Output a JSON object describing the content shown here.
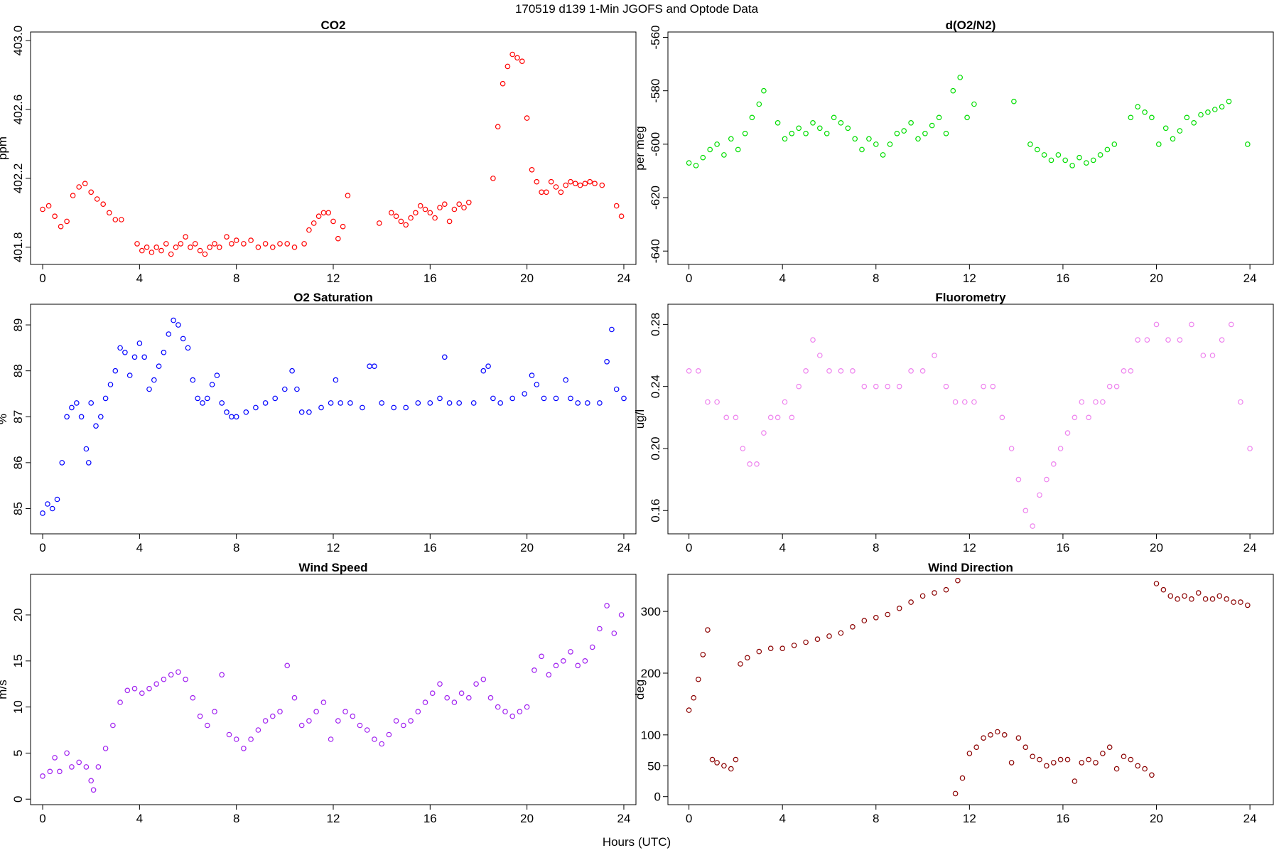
{
  "figure": {
    "title": "170519   d139   1-Min  JGOFS and Optode Data",
    "xlabel": "Hours (UTC)"
  },
  "chart_data": [
    {
      "type": "scatter",
      "title": "CO2",
      "ylabel": "ppm",
      "color": "#ff0000",
      "xlim": [
        -0.5,
        24.5
      ],
      "ylim": [
        401.7,
        403.05
      ],
      "xticks": [
        0,
        4,
        8,
        12,
        16,
        20,
        24
      ],
      "yticks": [
        401.8,
        402.2,
        402.6,
        403.0
      ],
      "ytick_labels": [
        "401.8",
        "402.2",
        "402.6",
        "403.0"
      ],
      "rotate_y_ticks": true,
      "x": [
        0.0,
        0.25,
        0.5,
        0.75,
        1.0,
        1.25,
        1.5,
        1.75,
        2.0,
        2.25,
        2.5,
        2.75,
        3.0,
        3.25,
        3.9,
        4.1,
        4.3,
        4.5,
        4.7,
        4.9,
        5.1,
        5.3,
        5.5,
        5.7,
        5.9,
        6.1,
        6.3,
        6.5,
        6.7,
        6.9,
        7.1,
        7.3,
        7.6,
        7.8,
        8.0,
        8.3,
        8.6,
        8.9,
        9.2,
        9.5,
        9.8,
        10.1,
        10.4,
        10.8,
        11.0,
        11.2,
        11.4,
        11.6,
        11.8,
        12.0,
        12.2,
        12.4,
        12.6,
        13.9,
        14.4,
        14.6,
        14.8,
        15.0,
        15.2,
        15.4,
        15.6,
        15.8,
        16.0,
        16.2,
        16.4,
        16.6,
        16.8,
        17.0,
        17.2,
        17.4,
        17.6,
        18.6,
        18.8,
        19.0,
        19.2,
        19.4,
        19.6,
        19.8,
        20.0,
        20.2,
        20.4,
        20.6,
        20.8,
        21.0,
        21.2,
        21.4,
        21.6,
        21.8,
        22.0,
        22.2,
        22.4,
        22.6,
        22.8,
        23.1,
        23.7,
        23.9
      ],
      "y": [
        402.02,
        402.04,
        401.98,
        401.92,
        401.95,
        402.1,
        402.15,
        402.17,
        402.12,
        402.08,
        402.05,
        402.0,
        401.96,
        401.96,
        401.82,
        401.78,
        401.8,
        401.77,
        401.8,
        401.78,
        401.82,
        401.76,
        401.8,
        401.82,
        401.86,
        401.8,
        401.82,
        401.78,
        401.76,
        401.8,
        401.82,
        401.8,
        401.86,
        401.82,
        401.84,
        401.82,
        401.84,
        401.8,
        401.82,
        401.8,
        401.82,
        401.82,
        401.8,
        401.82,
        401.9,
        401.94,
        401.98,
        402.0,
        402.0,
        401.95,
        401.85,
        401.92,
        402.1,
        401.94,
        402.0,
        401.98,
        401.95,
        401.93,
        401.97,
        402.0,
        402.04,
        402.02,
        402.0,
        401.97,
        402.03,
        402.05,
        401.95,
        402.02,
        402.05,
        402.03,
        402.06,
        402.2,
        402.5,
        402.75,
        402.85,
        402.92,
        402.9,
        402.88,
        402.55,
        402.25,
        402.18,
        402.12,
        402.12,
        402.18,
        402.15,
        402.12,
        402.16,
        402.18,
        402.17,
        402.16,
        402.17,
        402.18,
        402.17,
        402.16,
        402.04,
        401.98
      ]
    },
    {
      "type": "scatter",
      "title": "d(O2/N2)",
      "ylabel": "per meg",
      "color": "#00dd00",
      "xlim": [
        -0.9,
        25.0
      ],
      "ylim": [
        -645,
        -558
      ],
      "xticks": [
        0,
        4,
        8,
        12,
        16,
        20,
        24
      ],
      "yticks": [
        -640,
        -620,
        -600,
        -580,
        -560
      ],
      "ytick_labels": [
        "-640",
        "-620",
        "-600",
        "-580",
        "-560"
      ],
      "rotate_y_ticks": true,
      "x": [
        0.0,
        0.3,
        0.6,
        0.9,
        1.2,
        1.5,
        1.8,
        2.1,
        2.4,
        2.7,
        3.0,
        3.2,
        3.8,
        4.1,
        4.4,
        4.7,
        5.0,
        5.3,
        5.6,
        5.9,
        6.2,
        6.5,
        6.8,
        7.1,
        7.4,
        7.7,
        8.0,
        8.3,
        8.6,
        8.9,
        9.2,
        9.5,
        9.8,
        10.1,
        10.4,
        10.7,
        11.0,
        11.3,
        11.6,
        11.9,
        12.2,
        13.9,
        14.6,
        14.9,
        15.2,
        15.5,
        15.8,
        16.1,
        16.4,
        16.7,
        17.0,
        17.3,
        17.6,
        17.9,
        18.2,
        18.9,
        19.2,
        19.5,
        19.8,
        20.1,
        20.4,
        20.7,
        21.0,
        21.3,
        21.6,
        21.9,
        22.2,
        22.5,
        22.8,
        23.1,
        23.9
      ],
      "y": [
        -607,
        -608,
        -605,
        -602,
        -600,
        -604,
        -598,
        -602,
        -596,
        -590,
        -585,
        -580,
        -592,
        -598,
        -596,
        -594,
        -596,
        -592,
        -594,
        -596,
        -590,
        -592,
        -594,
        -598,
        -602,
        -598,
        -600,
        -604,
        -600,
        -596,
        -595,
        -592,
        -598,
        -596,
        -593,
        -590,
        -596,
        -580,
        -575,
        -590,
        -585,
        -584,
        -600,
        -602,
        -604,
        -606,
        -604,
        -606,
        -608,
        -605,
        -607,
        -606,
        -604,
        -602,
        -600,
        -590,
        -586,
        -588,
        -590,
        -600,
        -594,
        -598,
        -595,
        -590,
        -592,
        -589,
        -588,
        -587,
        -586,
        -584,
        -600
      ]
    },
    {
      "type": "scatter",
      "title": "O2 Saturation",
      "ylabel": "%",
      "color": "#0000ff",
      "xlim": [
        -0.5,
        24.5
      ],
      "ylim": [
        84.45,
        89.45
      ],
      "xticks": [
        0,
        4,
        8,
        12,
        16,
        20,
        24
      ],
      "yticks": [
        85,
        86,
        87,
        88,
        89
      ],
      "ytick_labels": [
        "85",
        "86",
        "87",
        "88",
        "89"
      ],
      "rotate_y_ticks": true,
      "x": [
        0.0,
        0.2,
        0.4,
        0.6,
        0.8,
        1.0,
        1.2,
        1.4,
        1.6,
        1.8,
        1.9,
        2.0,
        2.2,
        2.4,
        2.6,
        2.8,
        3.0,
        3.2,
        3.4,
        3.6,
        3.8,
        4.0,
        4.2,
        4.4,
        4.6,
        4.8,
        5.0,
        5.2,
        5.4,
        5.6,
        5.8,
        6.0,
        6.2,
        6.4,
        6.6,
        6.8,
        7.0,
        7.2,
        7.4,
        7.6,
        7.8,
        8.0,
        8.4,
        8.8,
        9.2,
        9.6,
        10.0,
        10.3,
        10.5,
        10.7,
        11.0,
        11.5,
        11.9,
        12.1,
        12.3,
        12.7,
        13.2,
        13.5,
        13.7,
        14.0,
        14.5,
        15.0,
        15.5,
        16.0,
        16.4,
        16.6,
        16.8,
        17.2,
        17.8,
        18.2,
        18.4,
        18.6,
        18.9,
        19.4,
        19.9,
        20.2,
        20.4,
        20.7,
        21.2,
        21.6,
        21.8,
        22.1,
        22.5,
        23.0,
        23.3,
        23.5,
        23.7,
        24.0
      ],
      "y": [
        84.9,
        85.1,
        85.0,
        85.2,
        86.0,
        87.0,
        87.2,
        87.3,
        87.0,
        86.3,
        86.0,
        87.3,
        86.8,
        87.0,
        87.4,
        87.7,
        88.0,
        88.5,
        88.4,
        87.9,
        88.3,
        88.6,
        88.3,
        87.6,
        87.8,
        88.1,
        88.4,
        88.8,
        89.1,
        89.0,
        88.7,
        88.5,
        87.8,
        87.4,
        87.3,
        87.4,
        87.7,
        87.9,
        87.3,
        87.1,
        87.0,
        87.0,
        87.1,
        87.2,
        87.3,
        87.4,
        87.6,
        88.0,
        87.6,
        87.1,
        87.1,
        87.2,
        87.3,
        87.8,
        87.3,
        87.3,
        87.2,
        88.1,
        88.1,
        87.3,
        87.2,
        87.2,
        87.3,
        87.3,
        87.4,
        88.3,
        87.3,
        87.3,
        87.3,
        88.0,
        88.1,
        87.4,
        87.3,
        87.4,
        87.5,
        87.9,
        87.7,
        87.4,
        87.4,
        87.8,
        87.4,
        87.3,
        87.3,
        87.3,
        88.2,
        88.9,
        87.6,
        87.4
      ]
    },
    {
      "type": "scatter",
      "title": "Fluorometry",
      "ylabel": "ug/l",
      "color": "#ee82ee",
      "xlim": [
        -0.9,
        25.0
      ],
      "ylim": [
        0.145,
        0.293
      ],
      "xticks": [
        0,
        4,
        8,
        12,
        16,
        20,
        24
      ],
      "yticks": [
        0.16,
        0.2,
        0.24,
        0.28
      ],
      "ytick_labels": [
        "0.16",
        "0.20",
        "0.24",
        "0.28"
      ],
      "rotate_y_ticks": true,
      "x": [
        0.0,
        0.4,
        0.8,
        1.2,
        1.6,
        2.0,
        2.3,
        2.6,
        2.9,
        3.2,
        3.5,
        3.8,
        4.1,
        4.4,
        4.7,
        5.0,
        5.3,
        5.6,
        6.0,
        6.5,
        7.0,
        7.5,
        8.0,
        8.5,
        9.0,
        9.5,
        10.0,
        10.5,
        11.0,
        11.4,
        11.8,
        12.2,
        12.6,
        13.0,
        13.4,
        13.8,
        14.1,
        14.4,
        14.7,
        15.0,
        15.3,
        15.6,
        15.9,
        16.2,
        16.5,
        16.8,
        17.1,
        17.4,
        17.7,
        18.0,
        18.3,
        18.6,
        18.9,
        19.2,
        19.6,
        20.0,
        20.5,
        21.0,
        21.5,
        22.0,
        22.4,
        22.8,
        23.2,
        23.6,
        24.0
      ],
      "y": [
        0.25,
        0.25,
        0.23,
        0.23,
        0.22,
        0.22,
        0.2,
        0.19,
        0.19,
        0.21,
        0.22,
        0.22,
        0.23,
        0.22,
        0.24,
        0.25,
        0.27,
        0.26,
        0.25,
        0.25,
        0.25,
        0.24,
        0.24,
        0.24,
        0.24,
        0.25,
        0.25,
        0.26,
        0.24,
        0.23,
        0.23,
        0.23,
        0.24,
        0.24,
        0.22,
        0.2,
        0.18,
        0.16,
        0.15,
        0.17,
        0.18,
        0.19,
        0.2,
        0.21,
        0.22,
        0.23,
        0.22,
        0.23,
        0.23,
        0.24,
        0.24,
        0.25,
        0.25,
        0.27,
        0.27,
        0.28,
        0.27,
        0.27,
        0.28,
        0.26,
        0.26,
        0.27,
        0.28,
        0.23,
        0.2
      ]
    },
    {
      "type": "scatter",
      "title": "Wind Speed",
      "ylabel": "m/s",
      "color": "#a020f0",
      "xlim": [
        -0.5,
        24.5
      ],
      "ylim": [
        -0.6,
        24.4
      ],
      "xticks": [
        0,
        4,
        8,
        12,
        16,
        20,
        24
      ],
      "yticks": [
        0,
        5,
        10,
        15,
        20
      ],
      "ytick_labels": [
        "0",
        "5",
        "10",
        "15",
        "20"
      ],
      "rotate_y_ticks": true,
      "x": [
        0.0,
        0.3,
        0.5,
        0.7,
        1.0,
        1.2,
        1.5,
        1.8,
        2.0,
        2.1,
        2.3,
        2.6,
        2.9,
        3.2,
        3.5,
        3.8,
        4.1,
        4.4,
        4.7,
        5.0,
        5.3,
        5.6,
        5.9,
        6.2,
        6.5,
        6.8,
        7.1,
        7.4,
        7.7,
        8.0,
        8.3,
        8.6,
        8.9,
        9.2,
        9.5,
        9.8,
        10.1,
        10.4,
        10.7,
        11.0,
        11.3,
        11.6,
        11.9,
        12.2,
        12.5,
        12.8,
        13.1,
        13.4,
        13.7,
        14.0,
        14.3,
        14.6,
        14.9,
        15.2,
        15.5,
        15.8,
        16.1,
        16.4,
        16.7,
        17.0,
        17.3,
        17.6,
        17.9,
        18.2,
        18.5,
        18.8,
        19.1,
        19.4,
        19.7,
        20.0,
        20.3,
        20.6,
        20.9,
        21.2,
        21.5,
        21.8,
        22.1,
        22.4,
        22.7,
        23.0,
        23.3,
        23.6,
        23.9
      ],
      "y": [
        2.5,
        3.0,
        4.5,
        3.0,
        5.0,
        3.5,
        4.0,
        3.5,
        2.0,
        1.0,
        3.5,
        5.5,
        8.0,
        10.5,
        11.8,
        12.0,
        11.5,
        12.0,
        12.5,
        13.0,
        13.5,
        13.8,
        13.0,
        11.0,
        9.0,
        8.0,
        9.5,
        13.5,
        7.0,
        6.5,
        5.5,
        6.5,
        7.5,
        8.5,
        9.0,
        9.5,
        14.5,
        11.0,
        8.0,
        8.5,
        9.5,
        10.5,
        6.5,
        8.5,
        9.5,
        9.0,
        8.0,
        7.5,
        6.5,
        6.0,
        7.0,
        8.5,
        8.0,
        8.5,
        9.5,
        10.5,
        11.5,
        12.5,
        11.0,
        10.5,
        11.5,
        11.0,
        12.5,
        13.0,
        11.0,
        10.0,
        9.5,
        9.0,
        9.5,
        10.0,
        14.0,
        15.5,
        13.5,
        14.5,
        15.0,
        16.0,
        14.5,
        15.0,
        16.5,
        18.5,
        21.0,
        18.0,
        20.0
      ]
    },
    {
      "type": "scatter",
      "title": "Wind Direction",
      "ylabel": "deg",
      "color": "#8b0000",
      "xlim": [
        -0.9,
        25.0
      ],
      "ylim": [
        -13,
        360
      ],
      "xticks": [
        0,
        4,
        8,
        12,
        16,
        20,
        24
      ],
      "yticks": [
        0,
        50,
        100,
        200,
        300
      ],
      "ytick_labels": [
        "0",
        "50",
        "100",
        "200",
        "300"
      ],
      "rotate_y_ticks": false,
      "x": [
        0.0,
        0.2,
        0.4,
        0.6,
        0.8,
        1.0,
        1.2,
        1.5,
        1.8,
        2.0,
        2.2,
        2.5,
        3.0,
        3.5,
        4.0,
        4.5,
        5.0,
        5.5,
        6.0,
        6.5,
        7.0,
        7.5,
        8.0,
        8.5,
        9.0,
        9.5,
        10.0,
        10.5,
        11.0,
        11.5,
        11.4,
        11.7,
        12.0,
        12.3,
        12.6,
        12.9,
        13.2,
        13.5,
        13.8,
        14.1,
        14.4,
        14.7,
        15.0,
        15.3,
        15.6,
        15.9,
        16.2,
        16.5,
        16.8,
        17.1,
        17.4,
        17.7,
        18.0,
        18.3,
        18.6,
        18.9,
        19.2,
        19.5,
        19.8,
        20.0,
        20.3,
        20.6,
        20.9,
        21.2,
        21.5,
        21.8,
        22.1,
        22.4,
        22.7,
        23.0,
        23.3,
        23.6,
        23.9
      ],
      "y": [
        140,
        160,
        190,
        230,
        270,
        60,
        55,
        50,
        45,
        60,
        215,
        225,
        235,
        240,
        240,
        245,
        250,
        255,
        260,
        265,
        275,
        285,
        290,
        295,
        305,
        315,
        325,
        330,
        335,
        350,
        5,
        30,
        70,
        80,
        95,
        100,
        105,
        100,
        55,
        95,
        80,
        65,
        60,
        50,
        55,
        60,
        60,
        25,
        55,
        60,
        55,
        70,
        80,
        45,
        65,
        60,
        50,
        45,
        35,
        345,
        335,
        325,
        320,
        325,
        320,
        330,
        320,
        320,
        325,
        320,
        315,
        315,
        310
      ]
    }
  ]
}
